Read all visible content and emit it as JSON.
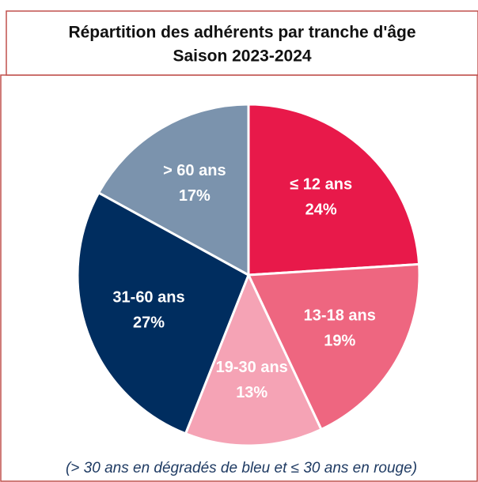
{
  "chart_data": {
    "type": "pie",
    "title": "Répartition des adhérents par tranche d'âge",
    "subtitle": "Saison 2023-2024",
    "categories": [
      "≤ 12 ans",
      "13-18 ans",
      "19-30 ans",
      "31-60 ans",
      "> 60 ans"
    ],
    "values": [
      24,
      19,
      13,
      27,
      17
    ],
    "value_labels": [
      "24%",
      "19%",
      "13%",
      "27%",
      "17%"
    ],
    "colors": [
      "#e8194a",
      "#ee6680",
      "#f5a3b5",
      "#002d5f",
      "#7b93ad"
    ],
    "annotation": "(> 30 ans en dégradés de bleu et ≤ 30 ans en rouge)"
  }
}
